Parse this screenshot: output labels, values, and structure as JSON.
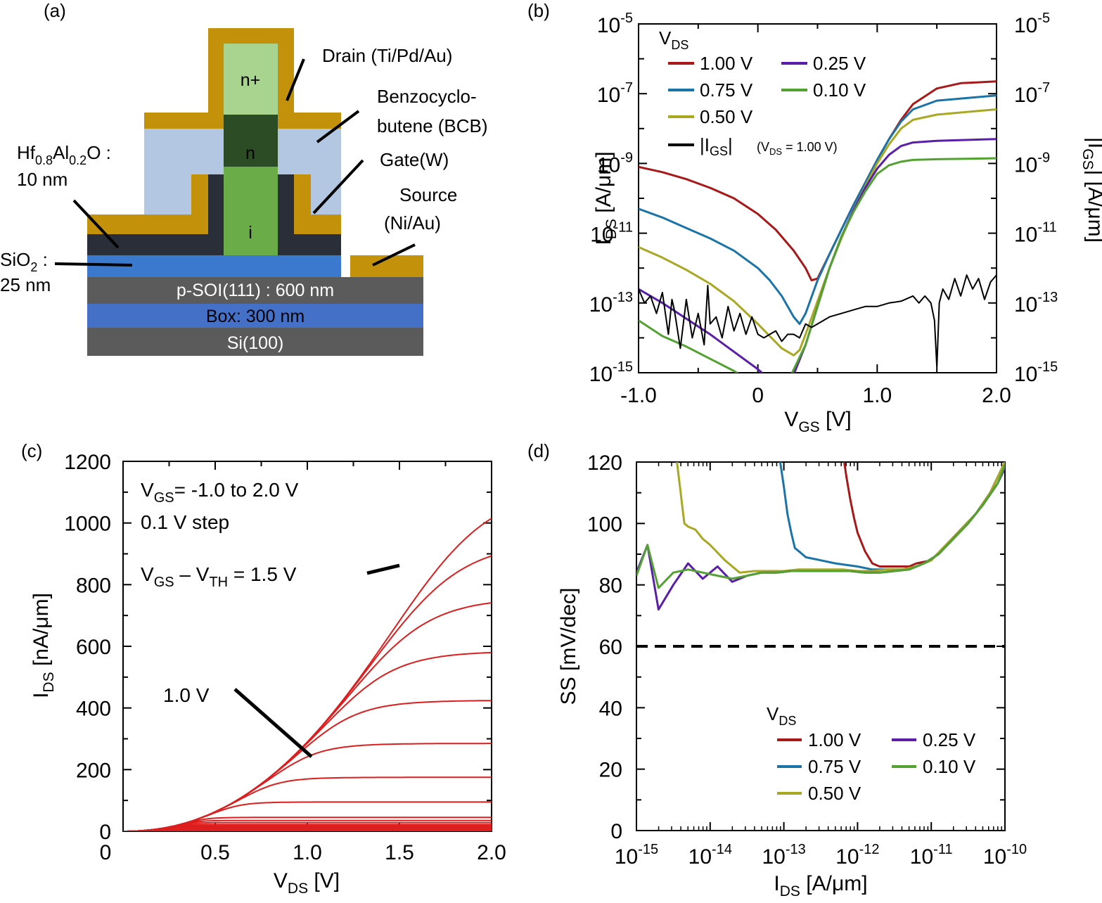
{
  "colors": {
    "v100": "#a81818",
    "v075": "#1a74a8",
    "v050": "#a8a822",
    "v025": "#5a1ea8",
    "v010": "#52a232",
    "red_curves": "#dd1e1e",
    "gold": "#c4920a",
    "bcb": "#b3c6e2",
    "dark": "#2a2e38",
    "sio2": "#3a79cd",
    "soi": "#5b5b5b",
    "box": "#4570c8",
    "si": "#5b5b5b",
    "nplus": "#a8d48f",
    "n": "#2c4c25",
    "i": "#6aac47"
  },
  "panels": {
    "a": {
      "label": "(a)",
      "labels": {
        "drain": "Drain (Ti/Pd/Au)",
        "bcb_1": "Benzocyclo-",
        "bcb_2": "butene (BCB)",
        "gate": "Gate(W)",
        "source_1": "Source",
        "source_2": "(Ni/Au)",
        "hfalo_p1": "Hf",
        "hfalo_s1": "0.8",
        "hfalo_p2": "Al",
        "hfalo_s2": "0.2",
        "hfalo_p3": "O :",
        "hfalo_thk": "10 nm",
        "sio2_p": "SiO",
        "sio2_s": "2",
        "sio2_c": " :",
        "sio2_thk": "25 nm",
        "nplus": "n+",
        "n": "n",
        "i": "i",
        "soi": "p-SOI(111) : 600 nm",
        "box": "Box: 300 nm",
        "si": "Si(100)"
      }
    },
    "b": {
      "label": "(b)",
      "legend_title": "V",
      "legend_title_sub": "DS",
      "legend": [
        "1.00 V",
        "0.75 V",
        "0.50 V",
        "0.25 V",
        "0.10 V"
      ],
      "igs_legend_p1": "|I",
      "igs_legend_sub": "GS",
      "igs_legend_p2": "|",
      "igs_legend_cond_p1": "(V",
      "igs_legend_cond_sub": "DS",
      "igs_legend_cond_p2": " = 1.00 V)",
      "ylabel_p1": "I",
      "ylabel_sub": "DS",
      "ylabel_p2": " [A/μm]",
      "y2label_p1": "|I",
      "y2label_sub": "GS",
      "y2label_p2": "| [A/μm]",
      "xlabel_p1": "V",
      "xlabel_sub": "GS",
      "xlabel_p2": " [V]",
      "xticks": [
        "-1.0",
        "0",
        "1.0",
        "2.0"
      ],
      "yticks_exp": [
        "-5",
        "-7",
        "-9",
        "-11",
        "-13",
        "-15"
      ],
      "ytick_base": "10"
    },
    "c": {
      "label": "(c)",
      "ann1_p1": "V",
      "ann1_sub": "GS",
      "ann1_p2": "= -1.0 to 2.0 V",
      "ann2": "0.1 V step",
      "ann3_p1": "V",
      "ann3_sub1": "GS",
      "ann3_p2": " – V",
      "ann3_sub2": "TH",
      "ann3_p3": " = 1.5 V",
      "ann4": "1.0 V",
      "ylabel_p1": "I",
      "ylabel_sub": "DS",
      "ylabel_p2": " [nA/μm]",
      "xlabel_p1": "V",
      "xlabel_sub": "DS",
      "xlabel_p2": " [V]",
      "xticks": [
        "0",
        "0.5",
        "1.0",
        "1.5",
        "2.0"
      ],
      "yticks": [
        "1200",
        "1000",
        "800",
        "600",
        "400",
        "200",
        "0"
      ]
    },
    "d": {
      "label": "(d)",
      "legend_title": "V",
      "legend_title_sub": "DS",
      "legend": [
        "1.00 V",
        "0.75 V",
        "0.50 V",
        "0.25 V",
        "0.10 V"
      ],
      "ylabel": "SS [mV/dec]",
      "xlabel_p1": "I",
      "xlabel_sub": "DS",
      "xlabel_p2": " [A/μm]",
      "yticks": [
        "120",
        "100",
        "80",
        "60",
        "40",
        "20",
        "0"
      ],
      "xticks_exp": [
        "-15",
        "-14",
        "-13",
        "-12",
        "-11",
        "-10"
      ],
      "xtick_base": "10"
    }
  },
  "chart_data": [
    {
      "panel": "b",
      "type": "line",
      "xlim": [
        -1.0,
        2.0
      ],
      "ylog": true,
      "ylim_exp": [
        -15,
        -5
      ],
      "series": [
        {
          "name": "1.00 V",
          "x": [
            -1.0,
            -0.8,
            -0.6,
            -0.4,
            -0.2,
            0.0,
            0.15,
            0.3,
            0.4,
            0.45,
            0.5,
            0.6,
            0.7,
            0.8,
            0.9,
            1.0,
            1.1,
            1.2,
            1.3,
            1.5,
            1.7,
            2.0
          ],
          "y": [
            -9.1,
            -9.25,
            -9.45,
            -9.7,
            -10.0,
            -10.45,
            -10.9,
            -11.5,
            -12.0,
            -12.35,
            -12.3,
            -11.6,
            -10.9,
            -10.2,
            -9.55,
            -8.9,
            -8.3,
            -7.75,
            -7.3,
            -6.85,
            -6.7,
            -6.65
          ]
        },
        {
          "name": "0.75 V",
          "x": [
            -1.0,
            -0.8,
            -0.6,
            -0.4,
            -0.2,
            0.0,
            0.1,
            0.2,
            0.3,
            0.35,
            0.4,
            0.5,
            0.6,
            0.7,
            0.8,
            0.9,
            1.0,
            1.1,
            1.2,
            1.3,
            1.5,
            2.0
          ],
          "y": [
            -10.3,
            -10.55,
            -10.85,
            -11.15,
            -11.5,
            -12.0,
            -12.35,
            -12.8,
            -13.4,
            -13.6,
            -13.3,
            -12.35,
            -11.6,
            -10.9,
            -10.2,
            -9.55,
            -8.9,
            -8.3,
            -7.8,
            -7.45,
            -7.2,
            -7.05
          ]
        },
        {
          "name": "0.50 V",
          "x": [
            -1.0,
            -0.8,
            -0.6,
            -0.4,
            -0.2,
            0.0,
            0.1,
            0.2,
            0.3,
            0.35,
            0.4,
            0.5,
            0.6,
            0.7,
            0.8,
            0.9,
            1.0,
            1.1,
            1.2,
            1.3,
            1.5,
            2.0
          ],
          "y": [
            -11.4,
            -11.7,
            -12.05,
            -12.45,
            -12.95,
            -13.6,
            -13.95,
            -14.3,
            -14.5,
            -14.35,
            -13.9,
            -12.95,
            -12.0,
            -11.15,
            -10.35,
            -9.65,
            -9.0,
            -8.45,
            -8.0,
            -7.75,
            -7.6,
            -7.45
          ]
        },
        {
          "name": "0.25 V",
          "x": [
            -1.0,
            -0.8,
            -0.6,
            -0.4,
            -0.2,
            0.0,
            0.05
          ],
          "y": [
            -12.6,
            -13.0,
            -13.45,
            -13.9,
            -14.4,
            -14.9,
            -15.05
          ]
        },
        {
          "name": "0.25 V (on)",
          "x": [
            0.3,
            0.4,
            0.5,
            0.6,
            0.7,
            0.8,
            0.9,
            1.0,
            1.1,
            1.2,
            1.3,
            1.5,
            2.0
          ],
          "y": [
            -15.05,
            -14.2,
            -13.1,
            -12.0,
            -11.1,
            -10.35,
            -9.7,
            -9.15,
            -8.75,
            -8.5,
            -8.4,
            -8.35,
            -8.3
          ]
        },
        {
          "name": "0.10 V",
          "x": [
            -1.0,
            -0.8,
            -0.6,
            -0.4,
            -0.2,
            -0.15
          ],
          "y": [
            -13.5,
            -13.95,
            -14.25,
            -14.6,
            -14.95,
            -15.05
          ]
        },
        {
          "name": "0.10 V (on)",
          "x": [
            0.28,
            0.4,
            0.5,
            0.6,
            0.7,
            0.8,
            0.9,
            1.0,
            1.1,
            1.2,
            1.3,
            1.5,
            2.0
          ],
          "y": [
            -15.05,
            -14.2,
            -13.1,
            -12.0,
            -11.1,
            -10.4,
            -9.8,
            -9.3,
            -9.05,
            -8.95,
            -8.9,
            -8.88,
            -8.85
          ]
        },
        {
          "name": "|IGS|",
          "x": [
            -1.0,
            -0.95,
            -0.9,
            -0.85,
            -0.8,
            -0.75,
            -0.72,
            -0.7,
            -0.65,
            -0.6,
            -0.55,
            -0.5,
            -0.45,
            -0.42,
            -0.4,
            -0.35,
            -0.3,
            -0.25,
            -0.2,
            -0.15,
            -0.1,
            -0.05,
            0.0,
            0.05,
            0.1,
            0.15,
            0.2,
            0.25,
            0.3,
            0.35,
            0.4,
            0.45,
            0.5,
            0.55,
            0.6,
            0.7,
            0.8,
            0.9,
            1.0,
            1.1,
            1.2,
            1.3,
            1.35,
            1.4,
            1.45,
            1.48,
            1.5,
            1.52,
            1.55,
            1.6,
            1.65,
            1.7,
            1.75,
            1.8,
            1.85,
            1.9,
            1.95,
            2.0
          ],
          "y": [
            -12.6,
            -13.0,
            -12.8,
            -13.3,
            -12.7,
            -13.9,
            -12.9,
            -13.2,
            -14.3,
            -12.9,
            -14.0,
            -13.3,
            -14.2,
            -12.5,
            -13.6,
            -13.4,
            -14.0,
            -13.1,
            -13.8,
            -13.3,
            -13.9,
            -13.4,
            -13.9,
            -14.0,
            -13.9,
            -13.8,
            -14.1,
            -13.9,
            -13.9,
            -14.0,
            -13.6,
            -13.7,
            -13.6,
            -13.5,
            -13.4,
            -13.3,
            -13.2,
            -13.1,
            -13.1,
            -13.0,
            -12.95,
            -12.8,
            -13.0,
            -12.8,
            -13.0,
            -13.5,
            -14.85,
            -13.0,
            -12.6,
            -12.9,
            -12.3,
            -12.8,
            -12.2,
            -12.6,
            -12.3,
            -12.9,
            -12.4,
            -12.2
          ]
        }
      ]
    },
    {
      "panel": "c",
      "type": "line",
      "xlim": [
        0,
        2.0
      ],
      "ylim": [
        0,
        1200
      ],
      "note": "family of IDS–VDS curves, VGS = -1.0 to 2.0 V, 0.1 V step",
      "saturation_levels": [
        2,
        4,
        6,
        8,
        11,
        14,
        18,
        22,
        28,
        35,
        45,
        95,
        175,
        285,
        425,
        585,
        760,
        945,
        1125
      ]
    },
    {
      "panel": "d",
      "type": "line",
      "xlog": true,
      "xlim_exp": [
        -15,
        -10
      ],
      "ylim": [
        0,
        120
      ],
      "reference_line": 60,
      "series": [
        {
          "name": "1.00 V",
          "x": [
            -12.18,
            -12.15,
            -12.1,
            -12.05,
            -12.0,
            -11.9,
            -11.8,
            -11.7,
            -11.6,
            -11.5,
            -11.3,
            -11.2,
            -11.0,
            -10.8,
            -10.6,
            -10.4,
            -10.2,
            -10.0
          ],
          "y": [
            120,
            115,
            108,
            102,
            97,
            91,
            87,
            86,
            86,
            86,
            86,
            87,
            88,
            93,
            98,
            103,
            110,
            120
          ]
        },
        {
          "name": "0.75 V",
          "x": [
            -13.05,
            -13.0,
            -12.95,
            -12.9,
            -12.85,
            -12.8,
            -12.7,
            -12.5,
            -12.3,
            -12.0,
            -11.8,
            -11.6,
            -11.4,
            -11.3,
            -11.2,
            -11.0,
            -10.8,
            -10.6,
            -10.4,
            -10.2,
            -10.0
          ],
          "y": [
            120,
            112,
            103,
            97,
            92,
            91,
            89,
            88,
            87,
            86,
            85,
            85,
            85,
            85,
            86,
            88,
            93,
            98,
            103,
            110,
            120
          ]
        },
        {
          "name": "0.50 V",
          "x": [
            -14.45,
            -14.4,
            -14.35,
            -14.3,
            -14.2,
            -14.1,
            -14.0,
            -13.8,
            -13.6,
            -13.4,
            -13.2,
            -13.0,
            -12.8,
            -12.6,
            -12.4,
            -12.2,
            -12.0,
            -11.8,
            -11.6,
            -11.4,
            -11.2,
            -11.0,
            -10.8,
            -10.6,
            -10.4,
            -10.2,
            -10.0
          ],
          "y": [
            120,
            110,
            100,
            99,
            98,
            95,
            93,
            88,
            84,
            84.5,
            84.5,
            84.5,
            85,
            85,
            85,
            85,
            84.5,
            84.5,
            85,
            85,
            86,
            88,
            93,
            98,
            103,
            110,
            120
          ]
        },
        {
          "name": "0.25 V",
          "x": [
            -15.0,
            -14.85,
            -14.7,
            -14.5,
            -14.3,
            -14.1,
            -13.9,
            -13.7,
            -13.5,
            -13.3,
            -13.1,
            -12.9,
            -12.7,
            -12.5,
            -12.3,
            -12.1,
            -11.9,
            -11.7,
            -11.5,
            -11.3,
            -11.1,
            -10.9,
            -10.7,
            -10.5,
            -10.3,
            -10.1,
            -10.0
          ],
          "y": [
            84,
            93,
            72,
            80,
            87,
            82,
            86,
            81,
            83,
            84,
            84,
            84.5,
            84.5,
            84.5,
            84.5,
            84.5,
            84,
            84,
            84.5,
            85,
            87,
            90,
            95,
            100,
            106,
            113,
            118
          ]
        },
        {
          "name": "0.10 V",
          "x": [
            -15.0,
            -14.85,
            -14.7,
            -14.5,
            -14.3,
            -14.1,
            -13.9,
            -13.7,
            -13.5,
            -13.3,
            -13.1,
            -12.9,
            -12.7,
            -12.5,
            -12.3,
            -12.1,
            -11.9,
            -11.7,
            -11.5,
            -11.3,
            -11.1,
            -10.9,
            -10.7,
            -10.5,
            -10.3,
            -10.1,
            -10.0
          ],
          "y": [
            83,
            93,
            79,
            84,
            85,
            84,
            83,
            82,
            83,
            84,
            84,
            84.5,
            84.5,
            84.5,
            84.5,
            84.5,
            84,
            84,
            84.5,
            85,
            87,
            90,
            95,
            100,
            106,
            113,
            119
          ]
        }
      ]
    }
  ]
}
